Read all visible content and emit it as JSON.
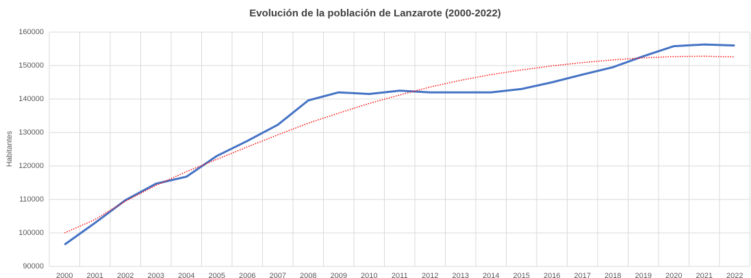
{
  "chart_data": {
    "type": "line",
    "title": "Evolución de la población de Lanzarote (2000‑2022)",
    "y_label": "Habitantes",
    "categories": [
      "2000",
      "2001",
      "2002",
      "2003",
      "2004",
      "2005",
      "2006",
      "2007",
      "2008",
      "2009",
      "2010",
      "2011",
      "2012",
      "2013",
      "2014",
      "2015",
      "2016",
      "2017",
      "2018",
      "2019",
      "2020",
      "2021",
      "2022"
    ],
    "series": [
      {
        "color": "#4472c4",
        "style": "solid",
        "values": [
          96500,
          103000,
          109800,
          114700,
          116800,
          123000,
          127500,
          132300,
          139600,
          142000,
          141500,
          142500,
          142000,
          142000,
          142000,
          143000,
          145000,
          147300,
          149500,
          152800,
          155800,
          156300,
          156000
        ]
      },
      {
        "color": "#ff0000",
        "style": "dotted",
        "values": [
          100000,
          104000,
          109500,
          114200,
          118300,
          122000,
          125700,
          129300,
          132800,
          135800,
          138700,
          141200,
          143600,
          145600,
          147300,
          148700,
          149900,
          150900,
          151700,
          152300,
          152700,
          152800,
          152600
        ]
      }
    ],
    "ylim": [
      90000,
      160000
    ],
    "yticks": [
      90000,
      100000,
      110000,
      120000,
      130000,
      140000,
      150000,
      160000
    ],
    "grid": true
  }
}
